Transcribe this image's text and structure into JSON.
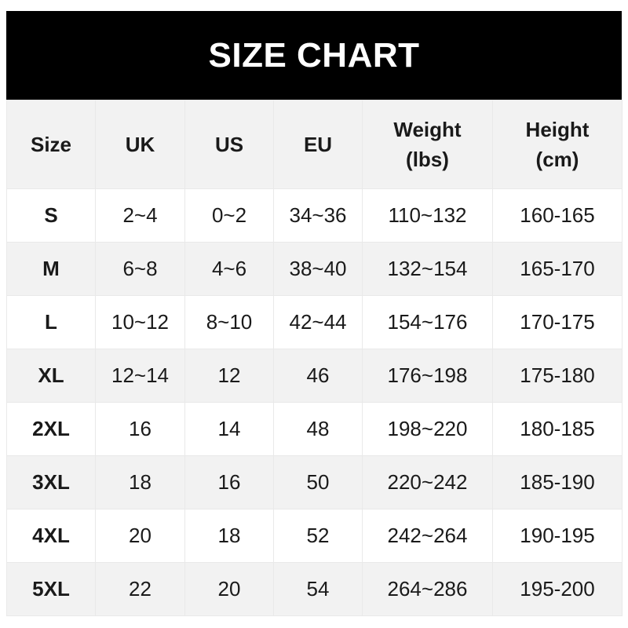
{
  "title": "SIZE CHART",
  "headers": [
    [
      "Size",
      ""
    ],
    [
      "UK",
      ""
    ],
    [
      "US",
      ""
    ],
    [
      "EU",
      ""
    ],
    [
      "Weight",
      "(lbs)"
    ],
    [
      "Height",
      "(cm)"
    ]
  ],
  "rows": [
    [
      "S",
      "2~4",
      "0~2",
      "34~36",
      "110~132",
      "160-165"
    ],
    [
      "M",
      "6~8",
      "4~6",
      "38~40",
      "132~154",
      "165-170"
    ],
    [
      "L",
      "10~12",
      "8~10",
      "42~44",
      "154~176",
      "170-175"
    ],
    [
      "XL",
      "12~14",
      "12",
      "46",
      "176~198",
      "175-180"
    ],
    [
      "2XL",
      "16",
      "14",
      "48",
      "198~220",
      "180-185"
    ],
    [
      "3XL",
      "18",
      "16",
      "50",
      "220~242",
      "185-190"
    ],
    [
      "4XL",
      "20",
      "18",
      "52",
      "242~264",
      "190-195"
    ],
    [
      "5XL",
      "22",
      "20",
      "54",
      "264~286",
      "195-200"
    ]
  ]
}
